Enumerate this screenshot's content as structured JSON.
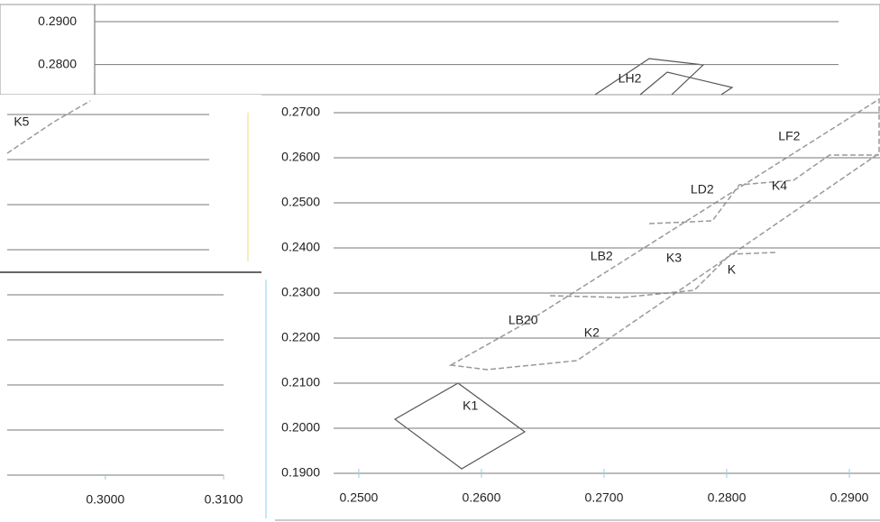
{
  "chart_data": [
    {
      "type": "line",
      "ylim": [
        0.273,
        0.294
      ],
      "yticks": [
        {
          "value": 0.29,
          "label": "0.2900"
        },
        {
          "value": 0.28,
          "label": "0.2800"
        }
      ],
      "grid": true
    },
    {
      "type": "line",
      "xlim": [
        0.2911,
        0.3132
      ],
      "xticks": [
        {
          "value": 0.3,
          "label": "0.3000"
        },
        {
          "value": 0.31,
          "label": "0.3100"
        }
      ],
      "grid": true
    },
    {
      "type": "scatter",
      "xlim": [
        0.2428,
        0.2925
      ],
      "ylim": [
        0.186,
        0.273
      ],
      "xticks": [
        {
          "value": 0.25,
          "label": "0.2500"
        },
        {
          "value": 0.26,
          "label": "0.2600"
        },
        {
          "value": 0.27,
          "label": "0.2700"
        },
        {
          "value": 0.28,
          "label": "0.2800"
        },
        {
          "value": 0.29,
          "label": "0.2900"
        }
      ],
      "yticks": [
        {
          "value": 0.27,
          "label": "0.2700"
        },
        {
          "value": 0.26,
          "label": "0.2600"
        },
        {
          "value": 0.25,
          "label": "0.2500"
        },
        {
          "value": 0.24,
          "label": "0.2400"
        },
        {
          "value": 0.23,
          "label": "0.2300"
        },
        {
          "value": 0.22,
          "label": "0.2200"
        },
        {
          "value": 0.21,
          "label": "0.2100"
        },
        {
          "value": 0.2,
          "label": "0.2000"
        },
        {
          "value": 0.19,
          "label": "0.1900"
        }
      ],
      "grid": true,
      "annotations": [
        {
          "text": "K1",
          "x": 0.2591,
          "y": 0.2048
        },
        {
          "text": "LB20",
          "x": 0.2634,
          "y": 0.2238
        },
        {
          "text": "K2",
          "x": 0.269,
          "y": 0.221
        },
        {
          "text": "LB2",
          "x": 0.2698,
          "y": 0.238
        },
        {
          "text": "K3",
          "x": 0.2757,
          "y": 0.2376
        },
        {
          "text": "K",
          "x": 0.2804,
          "y": 0.235
        },
        {
          "text": "LD2",
          "x": 0.278,
          "y": 0.2528
        },
        {
          "text": "K4",
          "x": 0.2843,
          "y": 0.2536
        },
        {
          "text": "LF2",
          "x": 0.2851,
          "y": 0.2646
        },
        {
          "text": "LH2",
          "x": 0.2721,
          "y": 0.2774
        },
        {
          "text": "K5",
          "x": 0.2225,
          "y": 0.2678
        }
      ]
    }
  ]
}
